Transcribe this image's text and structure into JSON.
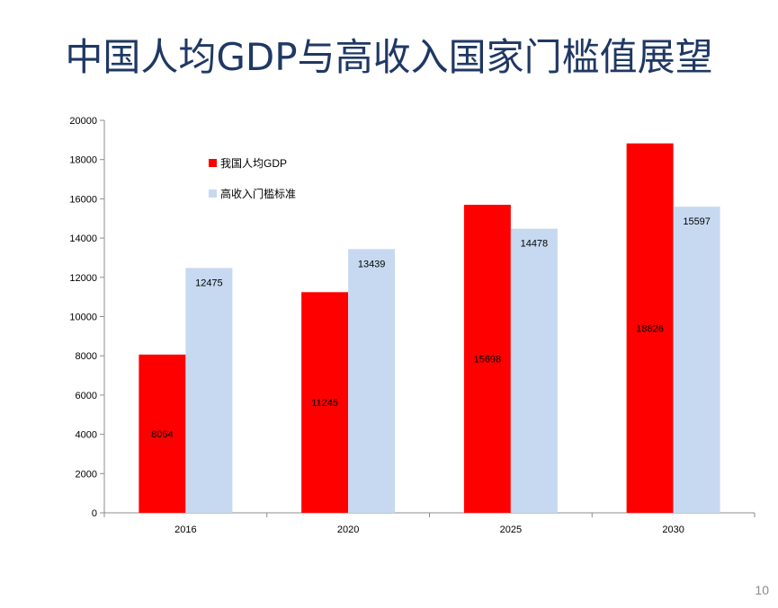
{
  "slide": {
    "title": "中国人均GDP与高收入国家门槛值展望",
    "page_number": "10"
  },
  "colors": {
    "china": "#ff0000",
    "threshold": "#c6d9f1",
    "title": "#1f3864",
    "axis": "#8c8c8c"
  },
  "chart_data": {
    "type": "bar",
    "categories": [
      "2016",
      "2020",
      "2025",
      "2030"
    ],
    "series": [
      {
        "name": "我国人均GDP",
        "values": [
          8064,
          11245,
          15698,
          18826
        ]
      },
      {
        "name": "高收入门槛标准",
        "values": [
          12475,
          13439,
          14478,
          15597
        ]
      }
    ],
    "ylim": [
      0,
      20000
    ],
    "yticks": [
      0,
      2000,
      4000,
      6000,
      8000,
      10000,
      12000,
      14000,
      16000,
      18000,
      20000
    ],
    "legend_position": "top-left",
    "grid": false
  }
}
